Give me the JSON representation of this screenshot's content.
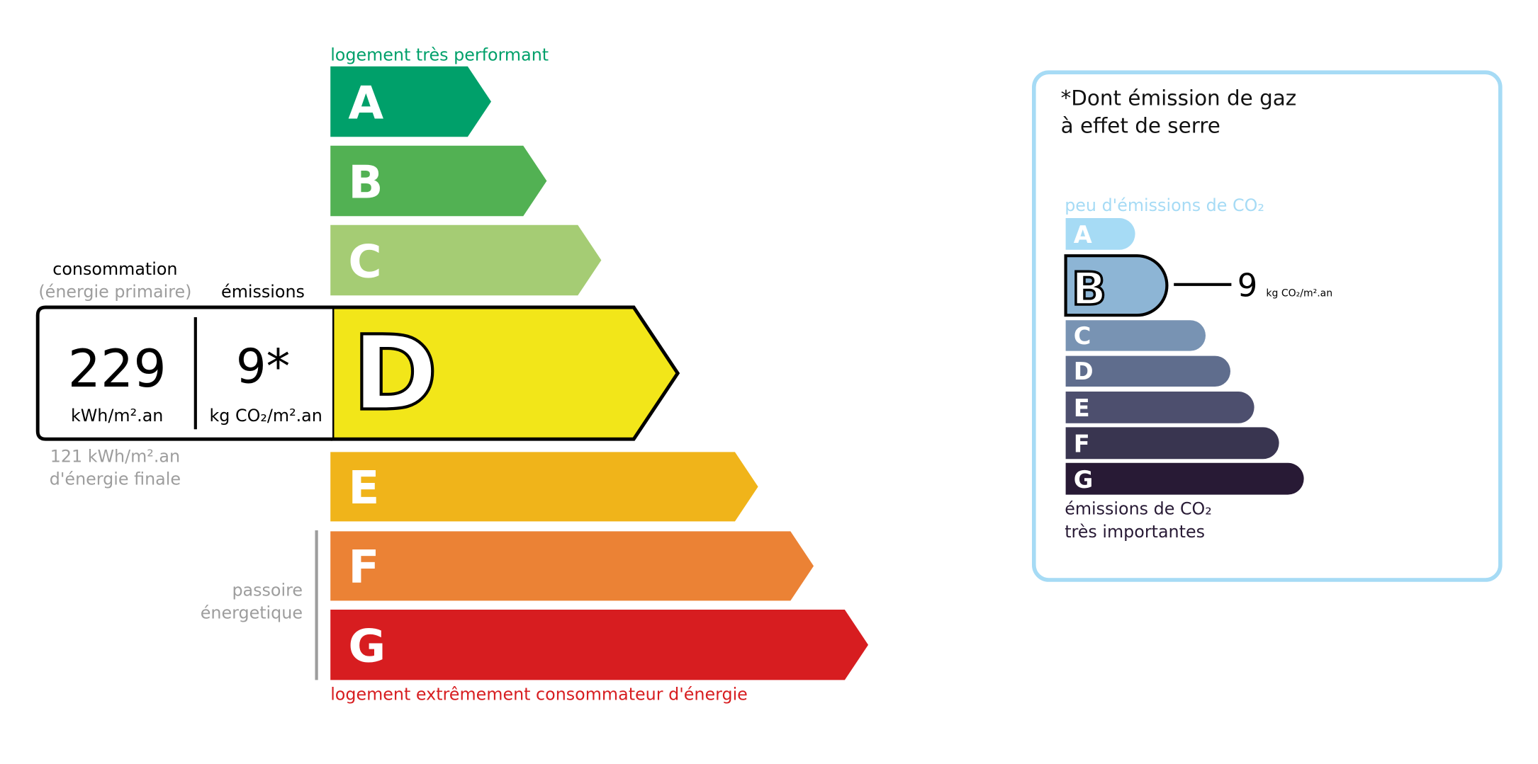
{
  "energy": {
    "top_label": "logement très performant",
    "bottom_label": "logement extrêmement consommateur d'énergie",
    "current_class": "D",
    "classes": [
      {
        "letter": "A",
        "color": "#00a06a"
      },
      {
        "letter": "B",
        "color": "#52b153"
      },
      {
        "letter": "C",
        "color": "#a5cc74"
      },
      {
        "letter": "D",
        "color": "#f2e619"
      },
      {
        "letter": "E",
        "color": "#f0b41a"
      },
      {
        "letter": "F",
        "color": "#eb8235"
      },
      {
        "letter": "G",
        "color": "#d71d20"
      }
    ],
    "consumption_label": "consommation",
    "consumption_sublabel": "(énergie primaire)",
    "emissions_label": "émissions",
    "consumption_value": "229",
    "consumption_unit": "kWh/m².an",
    "emissions_value": "9*",
    "emissions_unit": "kg CO₂/m².an",
    "final_energy_value": "121 kWh/m².an",
    "final_energy_label": "d'énergie finale",
    "passoire_line1": "passoire",
    "passoire_line2": "énergetique"
  },
  "ges": {
    "title_line1": "*Dont émission de gaz",
    "title_line2": "à effet de serre",
    "top_label": "peu d'émissions de CO₂",
    "bottom_line1": "émissions de CO₂",
    "bottom_line2": "très importantes",
    "current_class": "B",
    "value": "9",
    "unit": "kg CO₂/m².an",
    "border_color": "#a6dbf5",
    "classes": [
      {
        "letter": "A",
        "color": "#a6dbf5"
      },
      {
        "letter": "B",
        "color": "#8db5d5"
      },
      {
        "letter": "C",
        "color": "#7893b3"
      },
      {
        "letter": "D",
        "color": "#5f6d8d"
      },
      {
        "letter": "E",
        "color": "#4d4f6e"
      },
      {
        "letter": "F",
        "color": "#393550"
      },
      {
        "letter": "G",
        "color": "#281a35"
      }
    ]
  }
}
